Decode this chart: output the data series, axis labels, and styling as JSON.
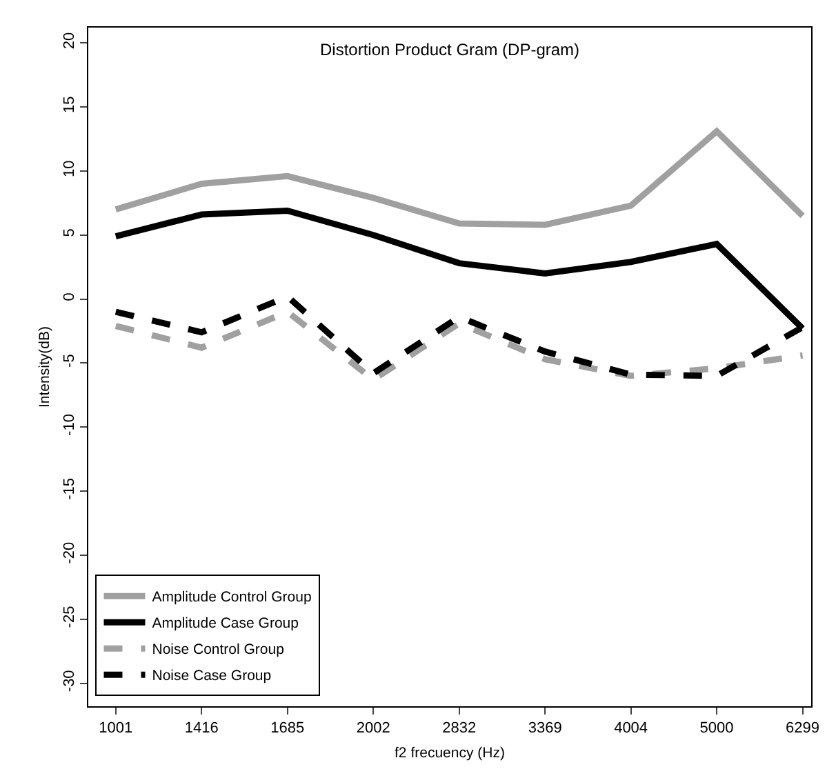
{
  "chart_data": {
    "type": "line",
    "title": "Distortion Product Gram (DP-gram)",
    "xlabel": "f2 frecuency (Hz)",
    "ylabel": "Intensity(dB)",
    "categories": [
      "1001",
      "1416",
      "1685",
      "2002",
      "2832",
      "3369",
      "4004",
      "5000",
      "6299"
    ],
    "series": [
      {
        "name": "Amplitude Control Group",
        "color": "#a0a0a0",
        "line_style": "solid",
        "values": [
          7.0,
          9.0,
          9.6,
          7.9,
          5.9,
          5.8,
          7.3,
          13.1,
          6.5
        ]
      },
      {
        "name": "Amplitude Case Group",
        "color": "#000000",
        "line_style": "solid",
        "values": [
          4.9,
          6.6,
          6.9,
          5.0,
          2.8,
          2.0,
          2.9,
          4.3,
          -2.3
        ]
      },
      {
        "name": "Noise Control Group",
        "color": "#a0a0a0",
        "line_style": "dashed",
        "values": [
          -2.1,
          -3.8,
          -1.0,
          -6.3,
          -1.9,
          -4.7,
          -6.0,
          -5.4,
          -4.4
        ]
      },
      {
        "name": "Noise Case Group",
        "color": "#000000",
        "line_style": "dashed",
        "values": [
          -1.0,
          -2.6,
          0.2,
          -5.8,
          -1.4,
          -4.1,
          -5.9,
          -6.0,
          -2.2
        ]
      }
    ],
    "ylim": [
      -31.8,
      21.2
    ],
    "yticks": [
      -30,
      -25,
      -20,
      -15,
      -10,
      -5,
      0,
      5,
      10,
      15,
      20
    ],
    "legend": "bottom left",
    "marker": "none"
  }
}
